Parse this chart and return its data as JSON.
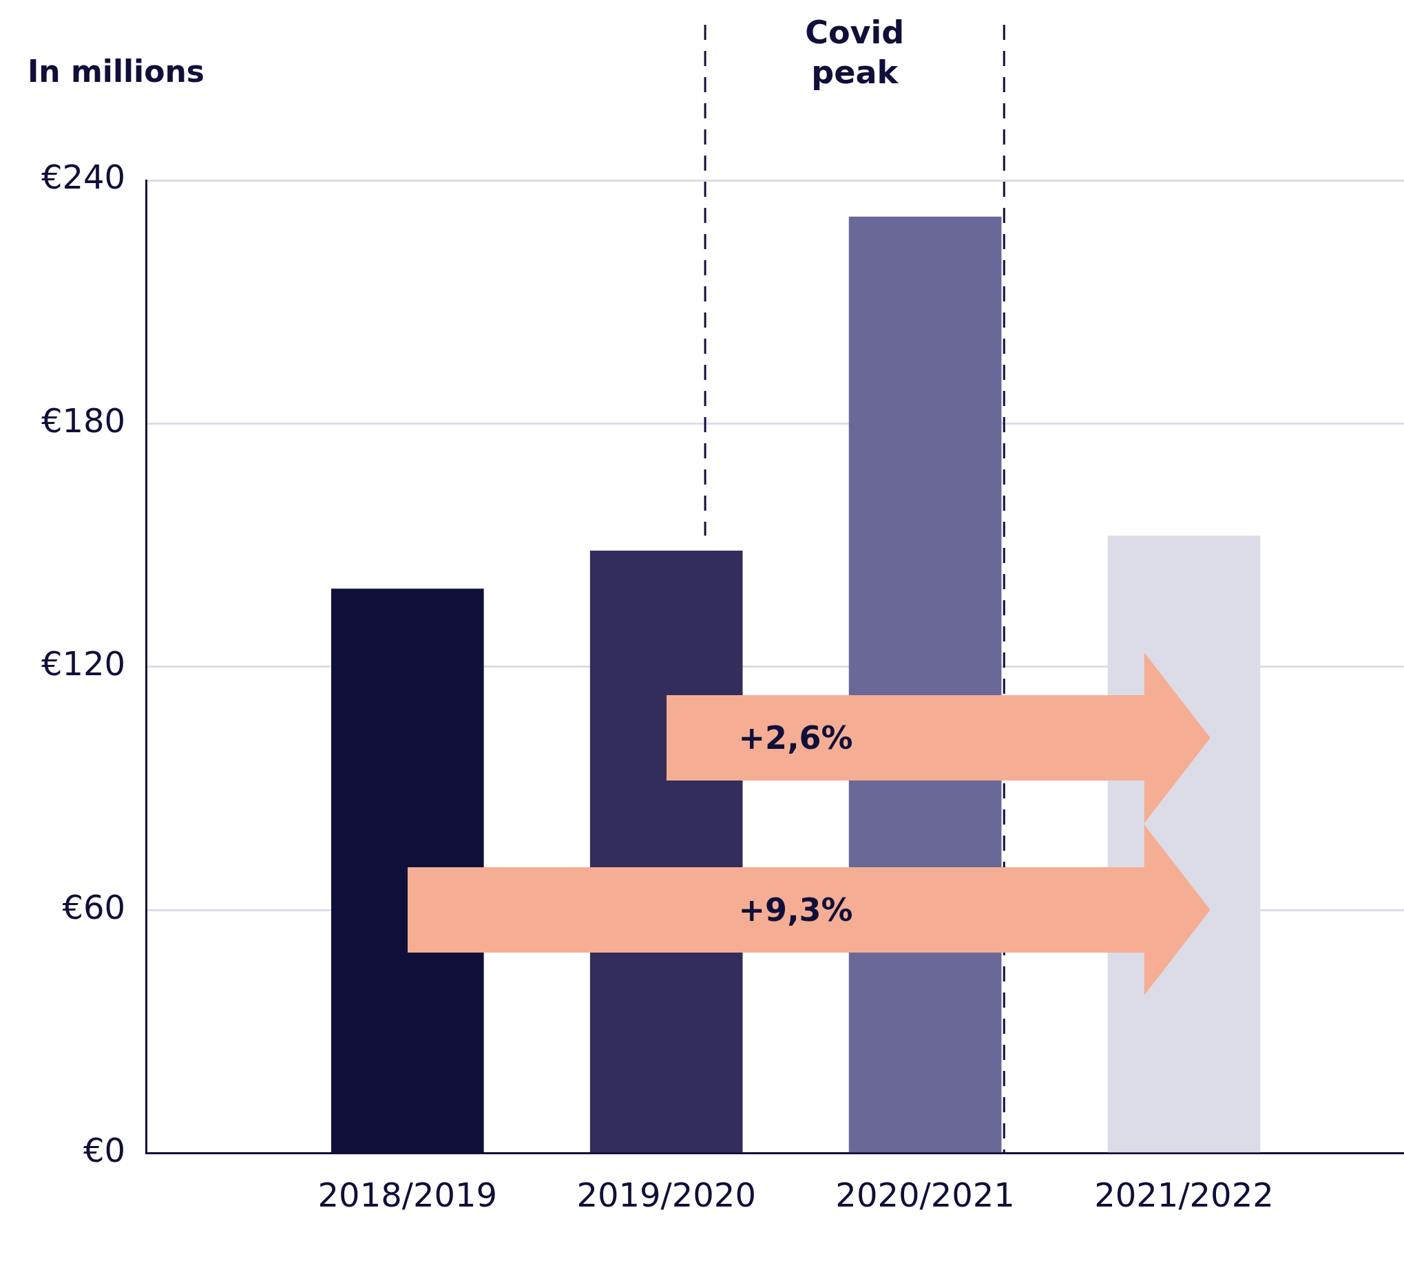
{
  "chart_data": {
    "type": "bar",
    "ylabel": "In millions",
    "categories": [
      "2018/2019",
      "2019/2020",
      "2020/2021",
      "2021/2022"
    ],
    "values": [
      139.2,
      148.6,
      231,
      152.3
    ],
    "colors": [
      "#100f3a",
      "#332d5b",
      "#6a6899",
      "#dcdce8"
    ],
    "ylim": [
      0,
      240
    ],
    "yticks": [
      {
        "value": 0,
        "label": "€0"
      },
      {
        "value": 60,
        "label": "€60"
      },
      {
        "value": 120,
        "label": "€120"
      },
      {
        "value": 180,
        "label": "€180"
      },
      {
        "value": 240,
        "label": "€240"
      }
    ],
    "grid": "y",
    "ref_lines": [
      {
        "axis": "x",
        "value": "2019/2020",
        "color": "#100f3a",
        "line_style": "dashed"
      },
      {
        "axis": "x",
        "value": "2020/2021",
        "color": "#100f3a",
        "line_style": "dashed"
      }
    ],
    "annotations": [
      "Covid peak",
      "+2,6%",
      "+9,3%"
    ]
  }
}
